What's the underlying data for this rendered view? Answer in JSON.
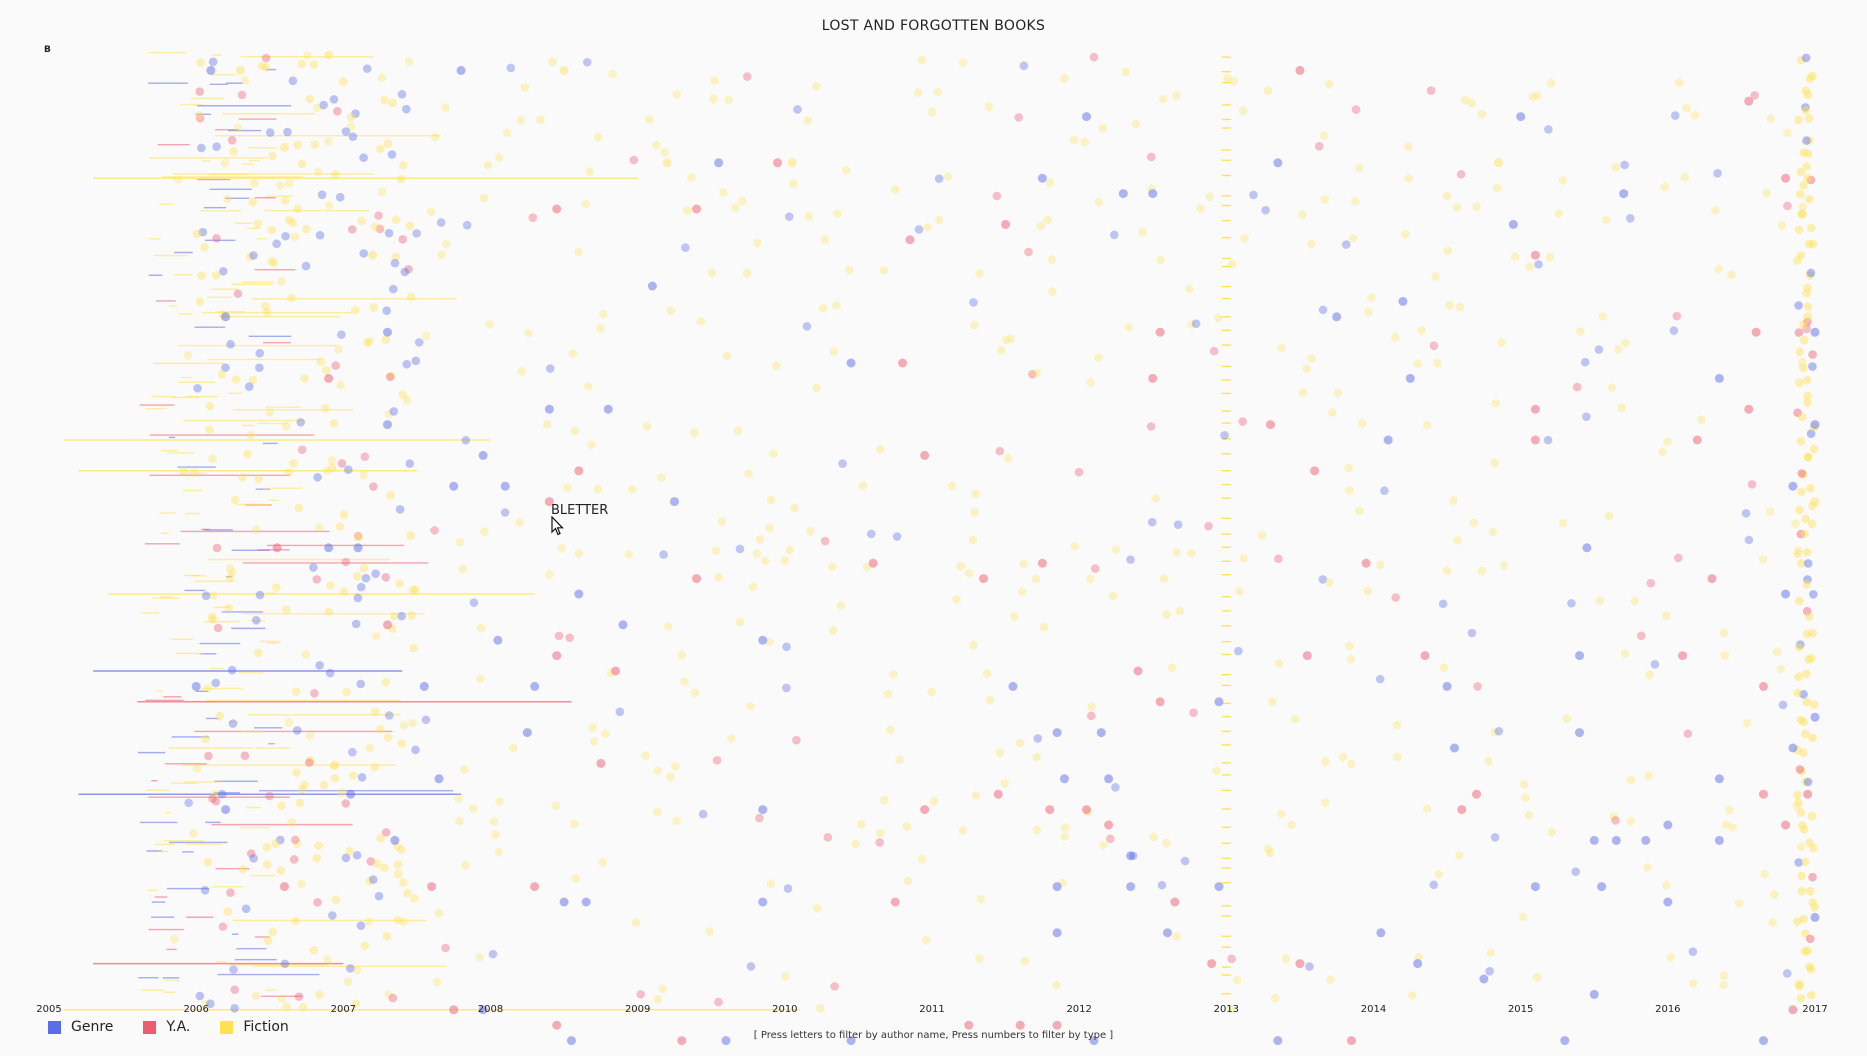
{
  "title": "LOST AND FORGOTTEN BOOKS",
  "filter_letter": "B",
  "hover_label": "BLETTER",
  "hint": "[ Press letters to filter by author name, Press numbers to filter by type ]",
  "colors": {
    "Genre": "#5b6ee8",
    "Y.A.": "#ee5c72",
    "Fiction": "#ffe250"
  },
  "chart_data": {
    "type": "scatter",
    "title": "LOST AND FORGOTTEN BOOKS",
    "x_axis": {
      "min": 2005,
      "max": 2017,
      "ticks": [
        "2005",
        "2006",
        "2007",
        "2008",
        "2009",
        "2010",
        "2011",
        "2012",
        "2013",
        "2014",
        "2015",
        "2016",
        "2017"
      ]
    },
    "legend": [
      "Genre",
      "Y.A.",
      "Fiction"
    ],
    "legend_position": "bottom-left",
    "grid": false,
    "points": [
      {
        "x": 2006.1,
        "row": 1,
        "type": "Genre"
      },
      {
        "x": 2006.3,
        "row": 1,
        "type": "Fiction"
      },
      {
        "x": 2006.9,
        "row": 0,
        "type": "Fiction"
      },
      {
        "x": 2007.8,
        "row": 1,
        "type": "Genre"
      },
      {
        "x": 2008.5,
        "row": 1,
        "type": "Fiction"
      },
      {
        "x": 2012.05,
        "row": 4,
        "type": "Genre"
      },
      {
        "x": 2013.5,
        "row": 1,
        "type": "Y.A."
      },
      {
        "x": 2015.0,
        "row": 4,
        "type": "Genre"
      },
      {
        "x": 2016.55,
        "row": 3,
        "type": "Y.A."
      },
      {
        "x": 2006.6,
        "row": 6,
        "type": "Fiction"
      },
      {
        "x": 2009.2,
        "row": 7,
        "type": "Fiction"
      },
      {
        "x": 2009.55,
        "row": 7,
        "type": "Genre"
      },
      {
        "x": 2009.95,
        "row": 7,
        "type": "Y.A."
      },
      {
        "x": 2010.05,
        "row": 7,
        "type": "Fiction"
      },
      {
        "x": 2011.75,
        "row": 8,
        "type": "Genre"
      },
      {
        "x": 2013.35,
        "row": 7,
        "type": "Genre"
      },
      {
        "x": 2014.85,
        "row": 7,
        "type": "Fiction"
      },
      {
        "x": 2015.7,
        "row": 9,
        "type": "Genre"
      },
      {
        "x": 2016.8,
        "row": 8,
        "type": "Y.A."
      },
      {
        "x": 2016.95,
        "row": 8,
        "type": "Fiction"
      },
      {
        "x": 2008.45,
        "row": 10,
        "type": "Y.A."
      },
      {
        "x": 2009.4,
        "row": 10,
        "type": "Y.A."
      },
      {
        "x": 2012.3,
        "row": 9,
        "type": "Genre"
      },
      {
        "x": 2012.5,
        "row": 9,
        "type": "Genre"
      },
      {
        "x": 2014.95,
        "row": 11,
        "type": "Genre"
      },
      {
        "x": 2010.85,
        "row": 12,
        "type": "Y.A."
      },
      {
        "x": 2011.5,
        "row": 11,
        "type": "Y.A."
      },
      {
        "x": 2015.1,
        "row": 13,
        "type": "Y.A."
      },
      {
        "x": 2007.2,
        "row": 13,
        "type": "Fiction"
      },
      {
        "x": 2009.1,
        "row": 15,
        "type": "Genre"
      },
      {
        "x": 2014.2,
        "row": 16,
        "type": "Genre"
      },
      {
        "x": 2016.95,
        "row": 17,
        "type": "Fiction"
      },
      {
        "x": 2006.2,
        "row": 17,
        "type": "Genre"
      },
      {
        "x": 2007.3,
        "row": 18,
        "type": "Genre"
      },
      {
        "x": 2012.55,
        "row": 18,
        "type": "Y.A."
      },
      {
        "x": 2013.75,
        "row": 17,
        "type": "Genre"
      },
      {
        "x": 2016.6,
        "row": 18,
        "type": "Y.A."
      },
      {
        "x": 2017.0,
        "row": 18,
        "type": "Genre"
      },
      {
        "x": 2010.45,
        "row": 20,
        "type": "Genre"
      },
      {
        "x": 2010.8,
        "row": 20,
        "type": "Y.A."
      },
      {
        "x": 2012.5,
        "row": 21,
        "type": "Y.A."
      },
      {
        "x": 2014.25,
        "row": 21,
        "type": "Genre"
      },
      {
        "x": 2006.9,
        "row": 21,
        "type": "Y.A."
      },
      {
        "x": 2008.4,
        "row": 23,
        "type": "Genre"
      },
      {
        "x": 2008.8,
        "row": 23,
        "type": "Genre"
      },
      {
        "x": 2007.3,
        "row": 24,
        "type": "Genre"
      },
      {
        "x": 2013.3,
        "row": 24,
        "type": "Y.A."
      },
      {
        "x": 2015.1,
        "row": 23,
        "type": "Y.A."
      },
      {
        "x": 2016.35,
        "row": 21,
        "type": "Genre"
      },
      {
        "x": 2016.55,
        "row": 23,
        "type": "Y.A."
      },
      {
        "x": 2017.0,
        "row": 24,
        "type": "Genre"
      },
      {
        "x": 2007.95,
        "row": 26,
        "type": "Genre"
      },
      {
        "x": 2008.6,
        "row": 27,
        "type": "Y.A."
      },
      {
        "x": 2010.95,
        "row": 26,
        "type": "Y.A."
      },
      {
        "x": 2014.1,
        "row": 25,
        "type": "Genre"
      },
      {
        "x": 2015.1,
        "row": 25,
        "type": "Y.A."
      },
      {
        "x": 2016.2,
        "row": 25,
        "type": "Y.A."
      },
      {
        "x": 2007.75,
        "row": 28,
        "type": "Genre"
      },
      {
        "x": 2008.1,
        "row": 28,
        "type": "Genre"
      },
      {
        "x": 2008.4,
        "row": 29,
        "type": "Y.A."
      },
      {
        "x": 2009.25,
        "row": 29,
        "type": "Genre"
      },
      {
        "x": 2013.6,
        "row": 27,
        "type": "Y.A."
      },
      {
        "x": 2016.85,
        "row": 28,
        "type": "Genre"
      },
      {
        "x": 2017.0,
        "row": 29,
        "type": "Fiction"
      },
      {
        "x": 2006.55,
        "row": 32,
        "type": "Y.A."
      },
      {
        "x": 2006.9,
        "row": 32,
        "type": "Genre"
      },
      {
        "x": 2007.1,
        "row": 32,
        "type": "Genre"
      },
      {
        "x": 2009.4,
        "row": 34,
        "type": "Y.A."
      },
      {
        "x": 2010.6,
        "row": 33,
        "type": "Y.A."
      },
      {
        "x": 2011.35,
        "row": 34,
        "type": "Y.A."
      },
      {
        "x": 2011.75,
        "row": 33,
        "type": "Y.A."
      },
      {
        "x": 2013.95,
        "row": 33,
        "type": "Y.A."
      },
      {
        "x": 2015.45,
        "row": 32,
        "type": "Genre"
      },
      {
        "x": 2016.3,
        "row": 34,
        "type": "Y.A."
      },
      {
        "x": 2016.8,
        "row": 35,
        "type": "Genre"
      },
      {
        "x": 2008.6,
        "row": 35,
        "type": "Genre"
      },
      {
        "x": 2008.9,
        "row": 37,
        "type": "Genre"
      },
      {
        "x": 2009.85,
        "row": 38,
        "type": "Genre"
      },
      {
        "x": 2008.05,
        "row": 38,
        "type": "Genre"
      },
      {
        "x": 2007.3,
        "row": 37,
        "type": "Y.A."
      },
      {
        "x": 2008.45,
        "row": 39,
        "type": "Y.A."
      },
      {
        "x": 2013.55,
        "row": 39,
        "type": "Y.A."
      },
      {
        "x": 2014.35,
        "row": 39,
        "type": "Y.A."
      },
      {
        "x": 2015.4,
        "row": 39,
        "type": "Genre"
      },
      {
        "x": 2016.1,
        "row": 39,
        "type": "Y.A."
      },
      {
        "x": 2006.0,
        "row": 41,
        "type": "Genre"
      },
      {
        "x": 2007.55,
        "row": 41,
        "type": "Genre"
      },
      {
        "x": 2008.3,
        "row": 41,
        "type": "Genre"
      },
      {
        "x": 2008.85,
        "row": 40,
        "type": "Y.A."
      },
      {
        "x": 2011.55,
        "row": 41,
        "type": "Genre"
      },
      {
        "x": 2012.4,
        "row": 40,
        "type": "Y.A."
      },
      {
        "x": 2012.55,
        "row": 42,
        "type": "Y.A."
      },
      {
        "x": 2012.95,
        "row": 42,
        "type": "Genre"
      },
      {
        "x": 2014.5,
        "row": 41,
        "type": "Genre"
      },
      {
        "x": 2016.65,
        "row": 41,
        "type": "Y.A."
      },
      {
        "x": 2017.0,
        "row": 43,
        "type": "Genre"
      },
      {
        "x": 2008.25,
        "row": 44,
        "type": "Genre"
      },
      {
        "x": 2011.85,
        "row": 44,
        "type": "Genre"
      },
      {
        "x": 2012.15,
        "row": 44,
        "type": "Genre"
      },
      {
        "x": 2014.55,
        "row": 45,
        "type": "Genre"
      },
      {
        "x": 2015.4,
        "row": 44,
        "type": "Genre"
      },
      {
        "x": 2016.85,
        "row": 45,
        "type": "Genre"
      },
      {
        "x": 2007.65,
        "row": 47,
        "type": "Genre"
      },
      {
        "x": 2007.05,
        "row": 48,
        "type": "Genre"
      },
      {
        "x": 2008.75,
        "row": 46,
        "type": "Y.A."
      },
      {
        "x": 2011.45,
        "row": 48,
        "type": "Y.A."
      },
      {
        "x": 2011.9,
        "row": 47,
        "type": "Genre"
      },
      {
        "x": 2012.2,
        "row": 47,
        "type": "Genre"
      },
      {
        "x": 2014.7,
        "row": 48,
        "type": "Y.A."
      },
      {
        "x": 2016.35,
        "row": 47,
        "type": "Genre"
      },
      {
        "x": 2016.65,
        "row": 48,
        "type": "Y.A."
      },
      {
        "x": 2016.95,
        "row": 48,
        "type": "Y.A."
      },
      {
        "x": 2006.2,
        "row": 49,
        "type": "Genre"
      },
      {
        "x": 2009.85,
        "row": 49,
        "type": "Genre"
      },
      {
        "x": 2010.95,
        "row": 49,
        "type": "Y.A."
      },
      {
        "x": 2011.8,
        "row": 49,
        "type": "Y.A."
      },
      {
        "x": 2012.05,
        "row": 49,
        "type": "Y.A."
      },
      {
        "x": 2012.2,
        "row": 50,
        "type": "Y.A."
      },
      {
        "x": 2014.6,
        "row": 49,
        "type": "Y.A."
      },
      {
        "x": 2015.5,
        "row": 51,
        "type": "Genre"
      },
      {
        "x": 2015.65,
        "row": 51,
        "type": "Genre"
      },
      {
        "x": 2015.85,
        "row": 51,
        "type": "Genre"
      },
      {
        "x": 2016.0,
        "row": 50,
        "type": "Genre"
      },
      {
        "x": 2016.35,
        "row": 51,
        "type": "Genre"
      },
      {
        "x": 2016.8,
        "row": 50,
        "type": "Y.A."
      },
      {
        "x": 2007.35,
        "row": 51,
        "type": "Genre"
      },
      {
        "x": 2012.35,
        "row": 52,
        "type": "Genre"
      },
      {
        "x": 2006.6,
        "row": 54,
        "type": "Y.A."
      },
      {
        "x": 2007.6,
        "row": 54,
        "type": "Y.A."
      },
      {
        "x": 2008.3,
        "row": 54,
        "type": "Y.A."
      },
      {
        "x": 2008.5,
        "row": 55,
        "type": "Genre"
      },
      {
        "x": 2008.65,
        "row": 55,
        "type": "Genre"
      },
      {
        "x": 2009.85,
        "row": 55,
        "type": "Genre"
      },
      {
        "x": 2010.75,
        "row": 55,
        "type": "Y.A."
      },
      {
        "x": 2011.85,
        "row": 54,
        "type": "Genre"
      },
      {
        "x": 2012.35,
        "row": 54,
        "type": "Genre"
      },
      {
        "x": 2012.65,
        "row": 55,
        "type": "Y.A."
      },
      {
        "x": 2012.95,
        "row": 54,
        "type": "Genre"
      },
      {
        "x": 2014.05,
        "row": 57,
        "type": "Genre"
      },
      {
        "x": 2015.1,
        "row": 54,
        "type": "Genre"
      },
      {
        "x": 2015.55,
        "row": 54,
        "type": "Genre"
      },
      {
        "x": 2016.0,
        "row": 55,
        "type": "Genre"
      },
      {
        "x": 2017.0,
        "row": 56,
        "type": "Genre"
      },
      {
        "x": 2011.85,
        "row": 57,
        "type": "Genre"
      },
      {
        "x": 2012.6,
        "row": 57,
        "type": "Genre"
      },
      {
        "x": 2012.9,
        "row": 59,
        "type": "Y.A."
      },
      {
        "x": 2013.5,
        "row": 59,
        "type": "Y.A."
      },
      {
        "x": 2014.3,
        "row": 59,
        "type": "Genre"
      },
      {
        "x": 2014.75,
        "row": 60,
        "type": "Genre"
      },
      {
        "x": 2015.5,
        "row": 61,
        "type": "Genre"
      },
      {
        "x": 2016.85,
        "row": 62,
        "type": "Y.A."
      },
      {
        "x": 2007.95,
        "row": 62,
        "type": "Genre"
      },
      {
        "x": 2007.75,
        "row": 62,
        "type": "Y.A."
      },
      {
        "x": 2011.6,
        "row": 63,
        "type": "Y.A."
      },
      {
        "x": 2011.85,
        "row": 63,
        "type": "Y.A."
      },
      {
        "x": 2008.45,
        "row": 63,
        "type": "Y.A."
      },
      {
        "x": 2008.55,
        "row": 64,
        "type": "Genre"
      },
      {
        "x": 2009.6,
        "row": 64,
        "type": "Genre"
      },
      {
        "x": 2009.3,
        "row": 64,
        "type": "Y.A."
      },
      {
        "x": 2010.45,
        "row": 64,
        "type": "Genre"
      },
      {
        "x": 2011.25,
        "row": 63,
        "type": "Y.A."
      },
      {
        "x": 2012.1,
        "row": 64,
        "type": "Genre"
      },
      {
        "x": 2013.35,
        "row": 64,
        "type": "Genre"
      },
      {
        "x": 2013.85,
        "row": 64,
        "type": "Y.A."
      },
      {
        "x": 2015.3,
        "row": 64,
        "type": "Genre"
      },
      {
        "x": 2016.65,
        "row": 64,
        "type": "Genre"
      }
    ]
  }
}
